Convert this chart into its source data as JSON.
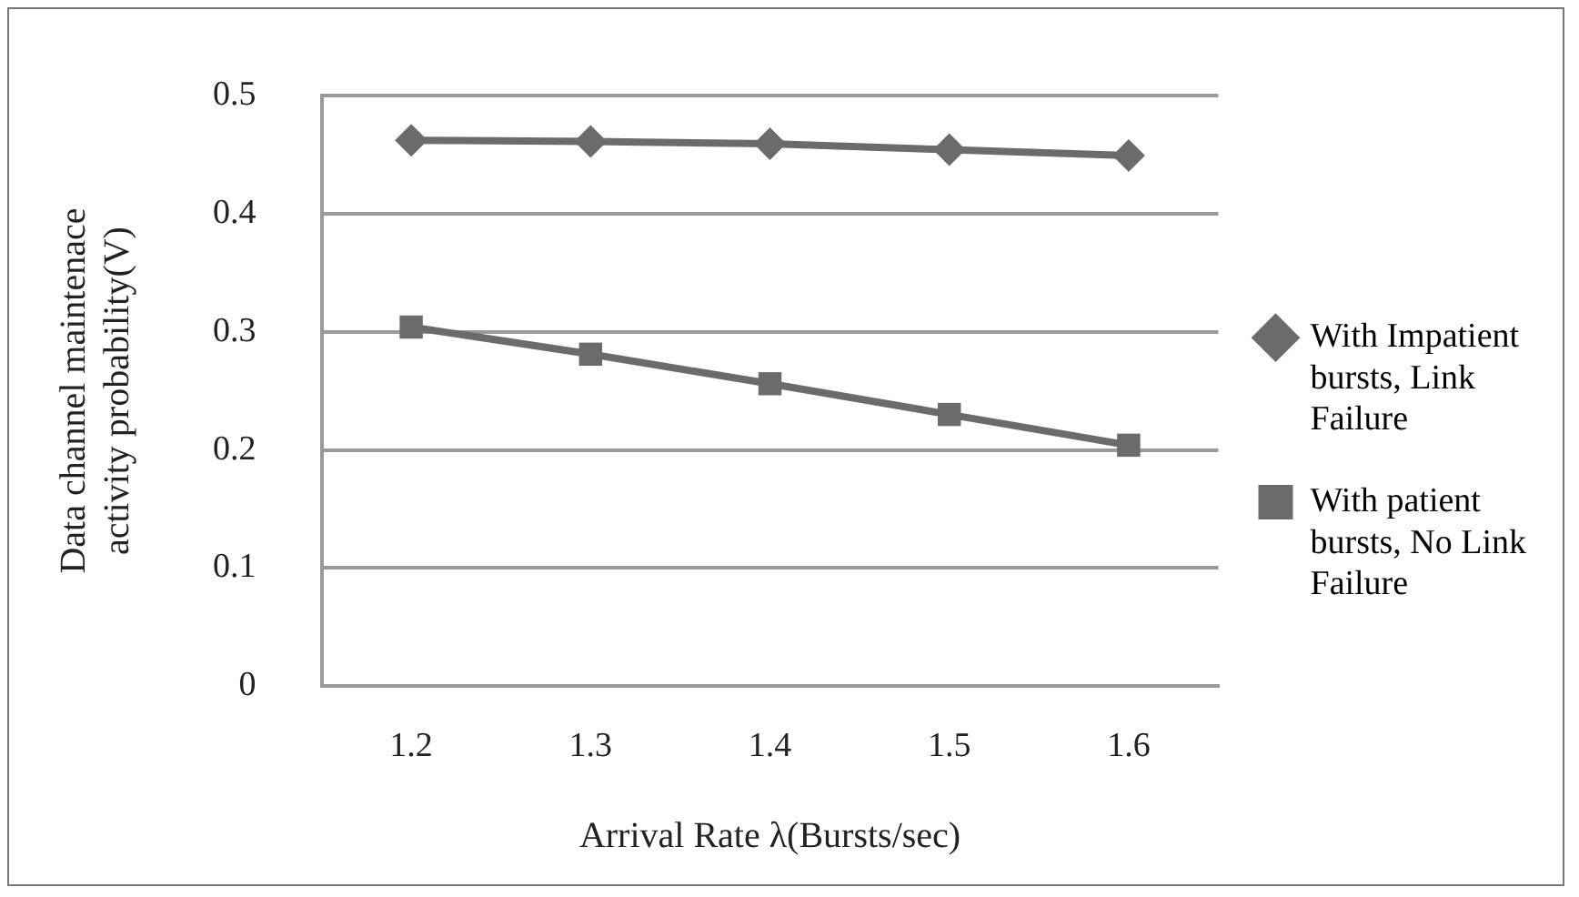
{
  "chart_data": {
    "type": "line",
    "xlabel": "Arrival Rate λ(Bursts/sec)",
    "ylabel": "Data channel maintenace activity probability(V)",
    "categories": [
      "1.2",
      "1.3",
      "1.4",
      "1.5",
      "1.6"
    ],
    "series": [
      {
        "name": "With Impatient bursts, Link Failure",
        "color": "#6b6b6b",
        "marker": "diamond",
        "values": [
          0.462,
          0.461,
          0.459,
          0.454,
          0.449
        ]
      },
      {
        "name": "With patient bursts, No Link Failure",
        "color": "#6b6b6b",
        "marker": "square",
        "values": [
          0.304,
          0.281,
          0.256,
          0.23,
          0.204
        ]
      }
    ],
    "ylim": [
      0,
      0.5
    ],
    "yticks": [
      0,
      0.1,
      0.2,
      0.3,
      0.4,
      0.5
    ],
    "grid": "y",
    "legend": "right"
  }
}
